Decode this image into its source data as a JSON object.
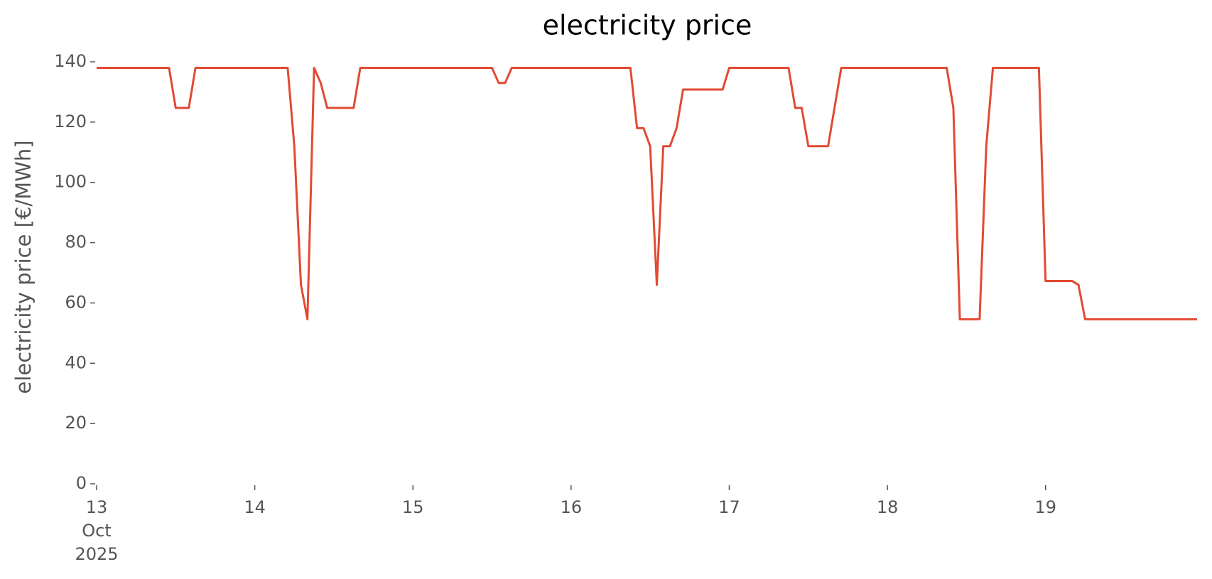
{
  "chart_data": {
    "type": "line",
    "title": "electricity price",
    "y_label": "electricity price [€/MWh]",
    "x": [
      13,
      13.458,
      13.5,
      13.583,
      13.625,
      14.208,
      14.25,
      14.292,
      14.333,
      14.375,
      14.417,
      14.458,
      14.625,
      14.667,
      15.5,
      15.542,
      15.583,
      15.625,
      16.375,
      16.417,
      16.458,
      16.5,
      16.542,
      16.583,
      16.625,
      16.667,
      16.708,
      16.958,
      17,
      17.375,
      17.417,
      17.458,
      17.5,
      17.625,
      17.708,
      18.375,
      18.417,
      18.458,
      18.583,
      18.625,
      18.667,
      18.958,
      19,
      19.167,
      19.208,
      19.25,
      19.958
    ],
    "series": [
      {
        "name": "electricity price",
        "color": "#E24A33",
        "values": [
          138,
          138,
          124.7,
          124.7,
          138,
          138,
          112,
          66,
          54.6,
          138,
          133,
          124.7,
          124.7,
          138,
          138,
          133,
          133,
          138,
          138,
          118,
          118,
          112,
          66,
          112,
          112,
          118,
          130.8,
          130.8,
          138,
          138,
          124.7,
          124.7,
          112,
          112,
          138,
          138,
          124.7,
          54.6,
          54.6,
          112,
          138,
          138,
          67.3,
          67.3,
          66,
          54.6,
          54.6
        ]
      }
    ],
    "xlim": [
      13,
      19.958
    ],
    "ylim": [
      0,
      140
    ],
    "xticks": [
      {
        "value": 13,
        "label": "13\nOct\n2025"
      },
      14,
      15,
      16,
      17,
      18,
      19
    ],
    "yticks": [
      0,
      20,
      40,
      60,
      80,
      100,
      120,
      140
    ],
    "grid": false
  }
}
